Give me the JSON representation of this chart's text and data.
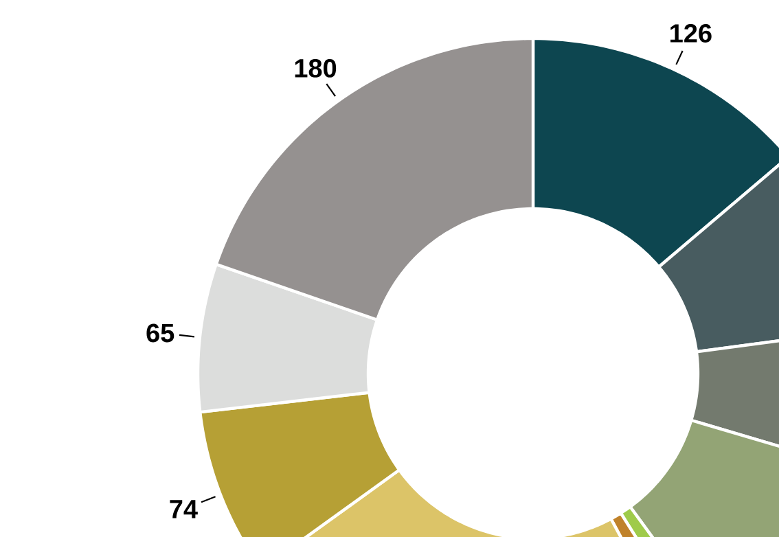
{
  "chart_data": {
    "type": "donut",
    "categories": [
      null,
      null,
      null,
      null,
      null,
      null,
      null,
      null,
      null,
      null
    ],
    "values": [
      126,
      83,
      61,
      95,
      10,
      10,
      209,
      74,
      65,
      180
    ],
    "colors": [
      "#0d4650",
      "#485c60",
      "#737a6e",
      "#93a475",
      "#9fcb4a",
      "#c0822a",
      "#dcc468",
      "#b6a035",
      "#dcdddc",
      "#959190"
    ],
    "value_labels": [
      "126",
      null,
      null,
      null,
      null,
      null,
      null,
      "74",
      "65",
      "180"
    ]
  }
}
